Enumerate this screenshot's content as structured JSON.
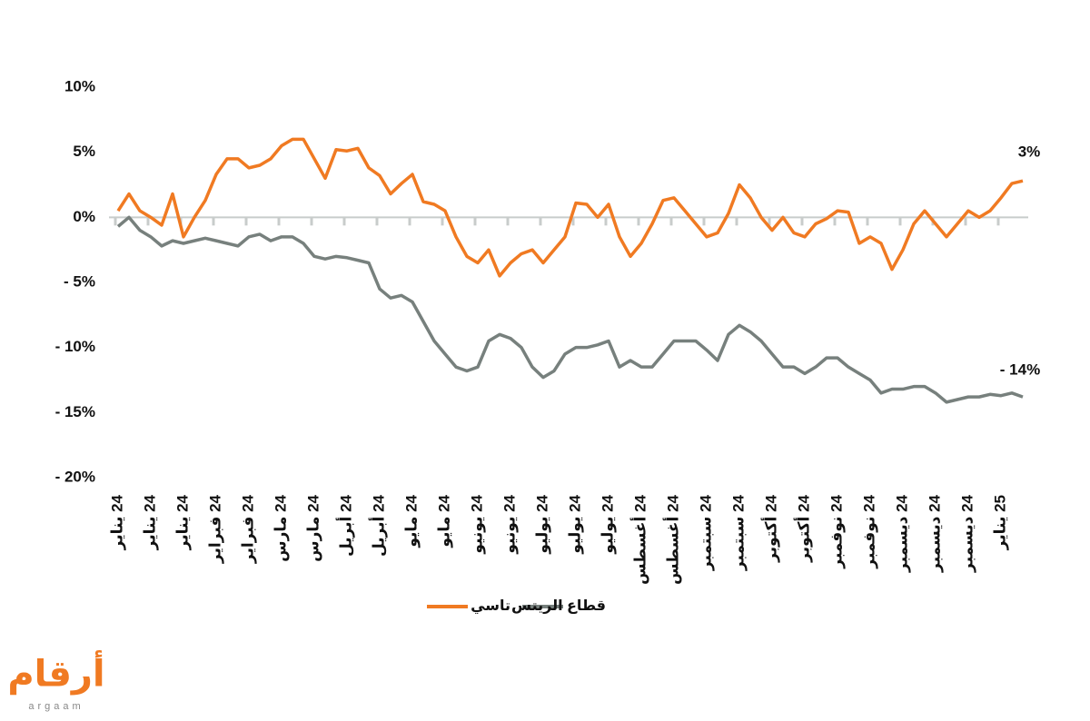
{
  "chart_data": {
    "type": "line",
    "categories": [
      "24 يناير",
      null,
      null,
      "24 يناير",
      null,
      null,
      "24 يناير",
      null,
      null,
      "24 فبراير",
      null,
      null,
      "24 فبراير",
      null,
      null,
      "24 مارس",
      null,
      null,
      "24 مارس",
      null,
      null,
      "24 أبريل",
      null,
      null,
      "24 أبريل",
      null,
      null,
      "24 مايو",
      null,
      null,
      "24 مايو",
      null,
      null,
      "24 يونيو",
      null,
      null,
      "24 يونيو",
      null,
      null,
      "24 يوليو",
      null,
      null,
      "24 يوليو",
      null,
      null,
      "24 يوليو",
      null,
      null,
      "24 أغسطس",
      null,
      null,
      "24 أغسطس",
      null,
      null,
      "24 سبتمبر",
      null,
      null,
      "24 سبتمبر",
      null,
      null,
      "24 أكتوبر",
      null,
      null,
      "24 أكتوبر",
      null,
      null,
      "24 نوفمبر",
      null,
      null,
      "24 نوفمبر",
      null,
      null,
      "24 ديسمبر",
      null,
      null,
      "24 ديسمبر",
      null,
      null,
      "24 ديسمبر",
      null,
      null,
      "25 يناير",
      null,
      null
    ],
    "series": [
      {
        "name": "تاسي",
        "color": "#f07a22",
        "values": [
          0.5,
          1.8,
          0.5,
          0,
          -0.6,
          1.8,
          -1.5,
          0,
          1.3,
          3.3,
          4.5,
          4.5,
          3.8,
          4,
          4.5,
          5.5,
          6,
          6,
          4.5,
          3,
          5.2,
          5.1,
          5.3,
          3.8,
          3.2,
          1.8,
          2.6,
          3.3,
          1.2,
          1,
          0.5,
          -1.5,
          -3,
          -3.5,
          -2.5,
          -4.5,
          -3.5,
          -2.8,
          -2.5,
          -3.5,
          -2.5,
          -1.5,
          1.1,
          1,
          0,
          1,
          -1.5,
          -3,
          -2,
          -0.5,
          1.3,
          1.5,
          0.5,
          -0.5,
          -1.5,
          -1.2,
          0.3,
          2.5,
          1.5,
          0,
          -1,
          0,
          -1.2,
          -1.5,
          -0.5,
          -0.1,
          0.5,
          0.4,
          -2,
          -1.5,
          -2,
          -4,
          -2.5,
          -0.5,
          0.5,
          -0.5,
          -1.5,
          -0.5,
          0.5,
          0,
          0.5,
          1.5,
          2.6,
          2.8
        ]
      },
      {
        "name": "قطاع الريتس",
        "color": "#77807d",
        "values": [
          -0.7,
          0,
          -1,
          -1.5,
          -2.2,
          -1.8,
          -2,
          -1.8,
          -1.6,
          -1.8,
          -2,
          -2.2,
          -1.5,
          -1.3,
          -1.8,
          -1.5,
          -1.5,
          -2,
          -3,
          -3.2,
          -3,
          -3.1,
          -3.3,
          -3.5,
          -5.5,
          -6.2,
          -6,
          -6.5,
          -8,
          -9.5,
          -10.5,
          -11.5,
          -11.8,
          -11.5,
          -9.5,
          -9,
          -9.3,
          -10,
          -11.5,
          -12.3,
          -11.8,
          -10.5,
          -10,
          -10,
          -9.8,
          -9.5,
          -11.5,
          -11,
          -11.5,
          -11.5,
          -10.5,
          -9.5,
          -9.5,
          -9.5,
          -10.2,
          -11,
          -9,
          -8.3,
          -8.8,
          -9.5,
          -10.5,
          -11.5,
          -11.5,
          -12,
          -11.5,
          -10.8,
          -10.8,
          -11.5,
          -12,
          -12.5,
          -13.5,
          -13.2,
          -13.2,
          -13,
          -13,
          -13.5,
          -14.2,
          -14,
          -13.8,
          -13.8,
          -13.6,
          -13.7,
          -13.5,
          -13.8
        ]
      }
    ],
    "ylim": [
      -20,
      10
    ],
    "yticks": [
      {
        "value": 10,
        "label": "10%"
      },
      {
        "value": 5,
        "label": "5%"
      },
      {
        "value": 0,
        "label": "0%"
      },
      {
        "value": -5,
        "label": "- 5%"
      },
      {
        "value": -10,
        "label": "- 10%"
      },
      {
        "value": -15,
        "label": "- 15%"
      },
      {
        "value": -20,
        "label": "- 20%"
      }
    ],
    "annotations": [
      "3%",
      "- 14%"
    ],
    "grid": false
  },
  "logo": {
    "name": "أرقام",
    "latin": "argaam"
  }
}
